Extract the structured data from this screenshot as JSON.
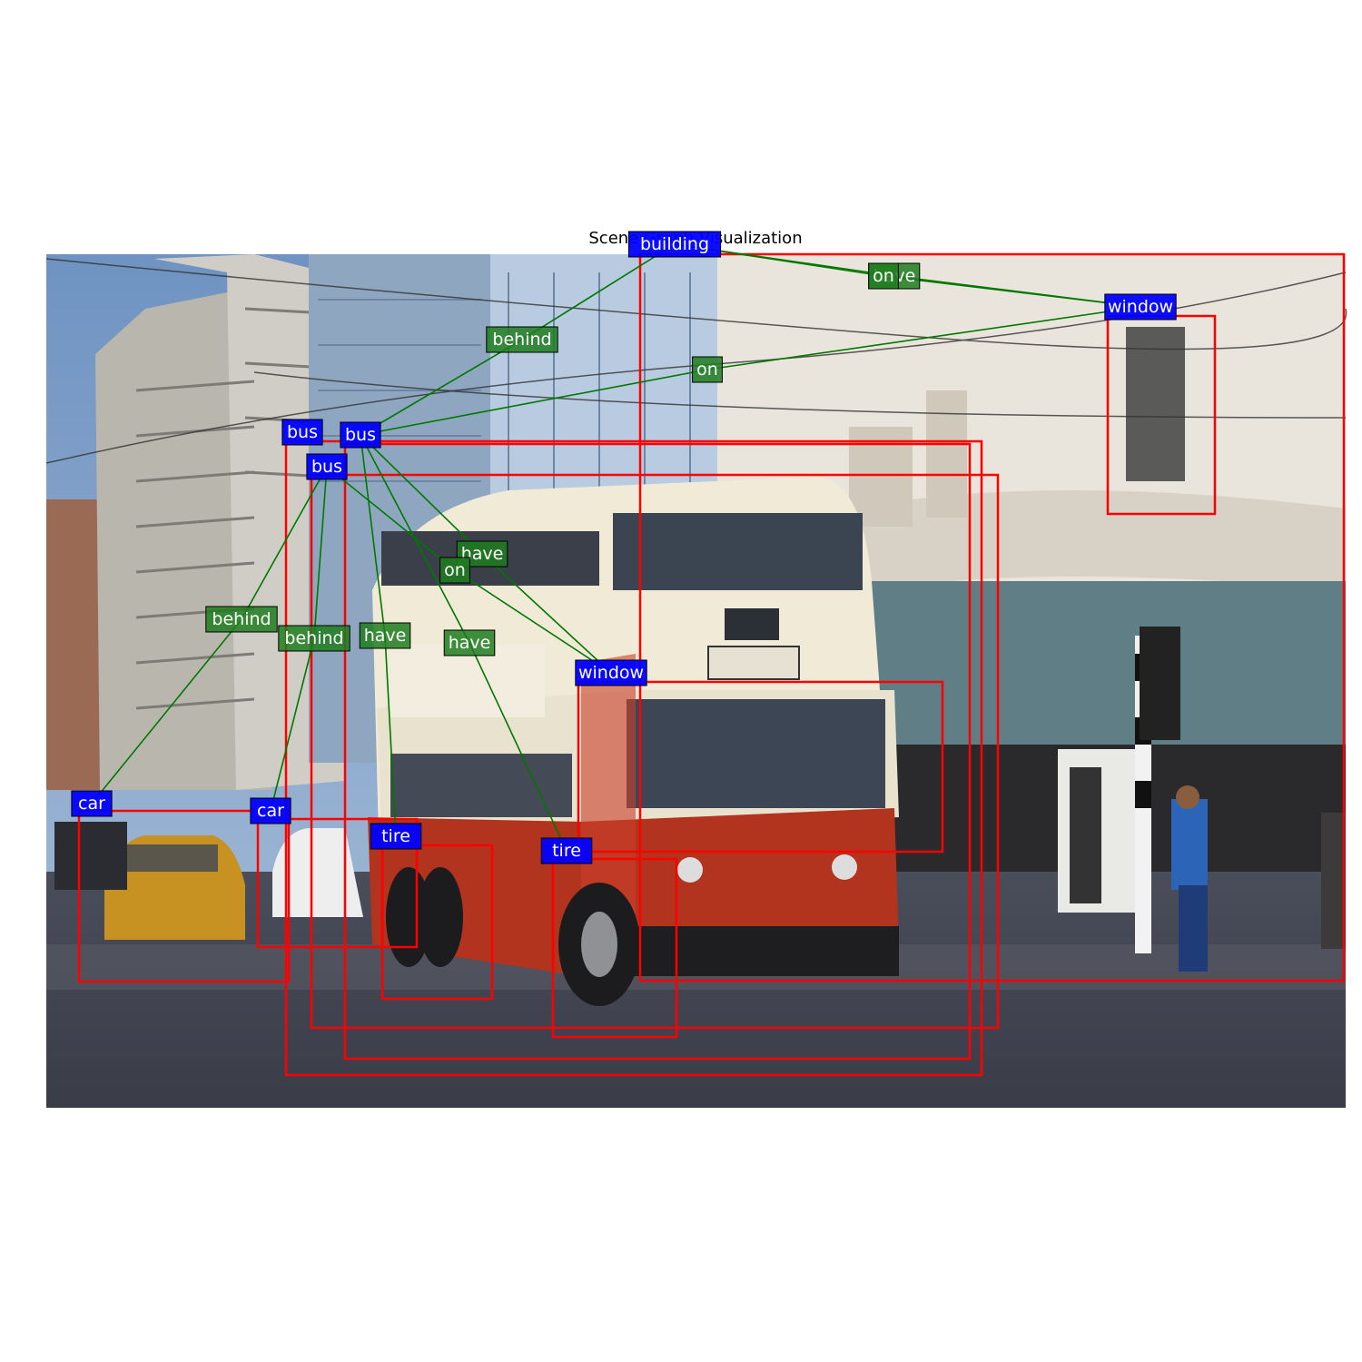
{
  "title": "Scene Graph Visualization",
  "colors": {
    "box": "#ff0000",
    "object_label_bg": "#0000ff",
    "relation_label_bg": "#1e7d1e",
    "edge": "#007800",
    "label_text": "#ffffff"
  },
  "photo": {
    "description": "Street scene with a red and cream double-decker trolleybus (route 662, STAD-CITY) among city buildings and cars"
  },
  "objects": [
    {
      "id": "building",
      "label": "building"
    },
    {
      "id": "window_tr",
      "label": "window"
    },
    {
      "id": "bus_1",
      "label": "bus"
    },
    {
      "id": "bus_2",
      "label": "bus"
    },
    {
      "id": "bus_3",
      "label": "bus"
    },
    {
      "id": "window_front",
      "label": "window"
    },
    {
      "id": "car_left",
      "label": "car"
    },
    {
      "id": "car_mid",
      "label": "car"
    },
    {
      "id": "tire_1",
      "label": "tire"
    },
    {
      "id": "tire_2",
      "label": "tire"
    }
  ],
  "relations": [
    {
      "label": "have",
      "subject": "building",
      "object": "window_tr"
    },
    {
      "label": "on",
      "subject": "window_tr",
      "object": "building"
    },
    {
      "label": "behind",
      "subject": "bus_2",
      "object": "building"
    },
    {
      "label": "on",
      "subject": "bus_2",
      "object": "window_tr"
    },
    {
      "label": "have",
      "subject": "bus_2",
      "object": "window_front"
    },
    {
      "label": "on",
      "subject": "bus_3",
      "object": "window_front"
    },
    {
      "label": "behind",
      "subject": "bus_3",
      "object": "car_left"
    },
    {
      "label": "behind",
      "subject": "bus_3",
      "object": "car_mid"
    },
    {
      "label": "have",
      "subject": "bus_2",
      "object": "tire_1"
    },
    {
      "label": "have",
      "subject": "bus_2",
      "object": "tire_2"
    }
  ]
}
